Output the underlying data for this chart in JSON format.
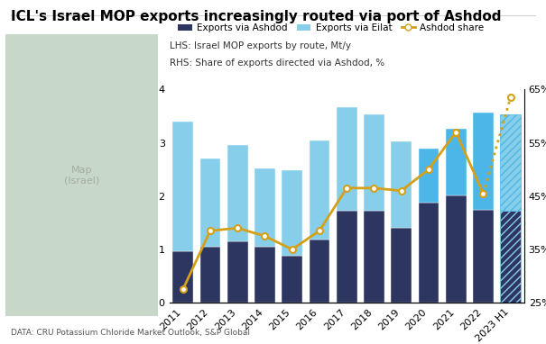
{
  "title": "ICL's Israel MOP exports increasingly routed via port of Ashdod",
  "subtitle_lhs": "LHS: Israel MOP exports by route, Mt/y",
  "subtitle_rhs": "RHS: Share of exports directed via Ashdod, %",
  "source": "DATA: CRU Potassium Chloride Market Outlook, S&P Global",
  "years": [
    "2011",
    "2012",
    "2013",
    "2014",
    "2015",
    "2016",
    "2017",
    "2018",
    "2019",
    "2020",
    "2021",
    "2022",
    "2023 H1"
  ],
  "ashdod_bar": [
    0.97,
    1.05,
    1.15,
    1.05,
    0.88,
    1.18,
    1.72,
    1.72,
    1.4,
    1.87,
    2.02,
    1.75,
    1.72
  ],
  "eilat_bar": [
    2.43,
    1.65,
    1.8,
    1.47,
    1.6,
    1.87,
    1.95,
    1.82,
    1.63,
    1.02,
    1.25,
    1.82,
    1.82
  ],
  "ashdod_share": [
    27.5,
    38.5,
    39.0,
    37.5,
    35.0,
    38.5,
    46.5,
    46.5,
    46.0,
    50.0,
    57.0,
    45.5,
    63.5
  ],
  "ashdod_bar_color": "#2d3561",
  "eilat_bar_color_old": "#87ceeb",
  "eilat_bar_color_new": "#4db6e8",
  "ashdod_share_color": "#d4a017",
  "ylim_left": [
    0,
    4
  ],
  "ylim_right": [
    25,
    65
  ],
  "yticks_left": [
    0,
    1,
    2,
    3,
    4
  ],
  "yticks_right": [
    25,
    35,
    45,
    55,
    65
  ],
  "map_bg_color": "#e8e8e8",
  "title_fontsize": 11,
  "label_fontsize": 8,
  "tick_fontsize": 8
}
